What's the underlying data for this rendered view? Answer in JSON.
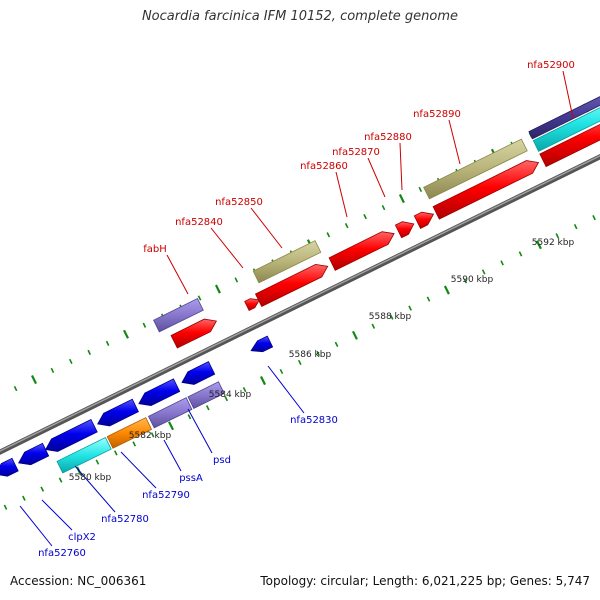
{
  "title": "Nocardia farcinica IFM 10152, complete genome",
  "footer": {
    "accession": "Accession: NC_006361",
    "summary": "Topology: circular; Length: 6,021,225 bp; Genes: 5,747"
  },
  "colors": {
    "forward_gene": "#ff0000",
    "reverse_gene": "#0000ee",
    "forward_label": "#cc0000",
    "reverse_label": "#0000cc",
    "backbone": "#777777",
    "tick": "#118811",
    "cds_olive": "#b8b47a",
    "cds_purple": "#8877cc",
    "cds_cyan": "#22e5e5",
    "cds_orange": "#ff8800",
    "cds_navy": "#4a3f9a"
  },
  "scale_labels": [
    "5580 kbp",
    "5582 kbp",
    "5584 kbp",
    "5586 kbp",
    "5588 kbp",
    "5590 kbp",
    "5592 kbp"
  ],
  "forward_genes": [
    "fabH",
    "nfa52840",
    "nfa52850",
    "nfa52860",
    "nfa52870",
    "nfa52880",
    "nfa52890",
    "nfa52900"
  ],
  "reverse_genes": [
    "nfa52760",
    "clpX2",
    "nfa52780",
    "nfa52790",
    "pssA",
    "psd",
    "nfa52830"
  ]
}
